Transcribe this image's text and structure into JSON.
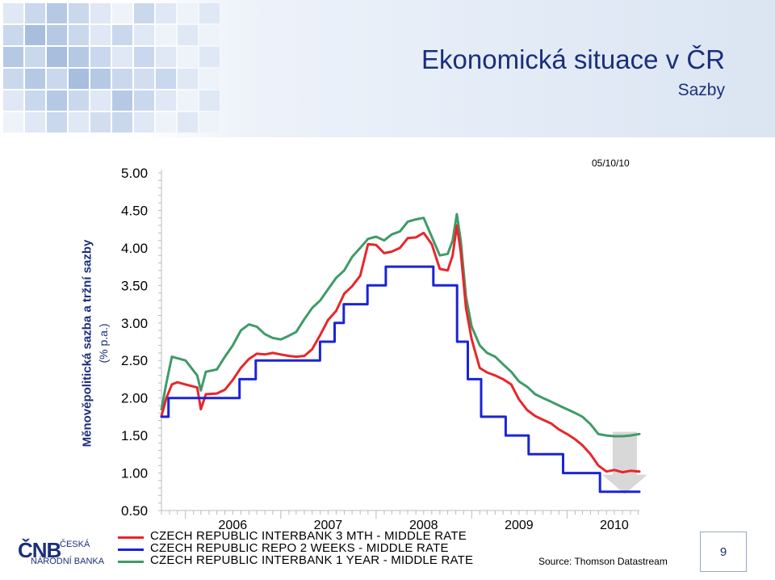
{
  "header": {
    "title": "Ekonomická situace v ČR",
    "subtitle": "Sazby"
  },
  "date_label": "05/10/10",
  "y_axis": {
    "title": "Měnověpolitická sazba a tržní sazby",
    "unit": "(% p.a.)"
  },
  "source": "Source: Thomson Datastream",
  "page_number": "9",
  "logo": {
    "mark": "ČNB",
    "line1": "ČESKÁ",
    "line2": "NÁRODNÍ BANKA"
  },
  "colors": {
    "interbank_3m": "#e8262b",
    "repo_2w": "#1a24d6",
    "interbank_1y": "#3f9b68",
    "title": "#1b2f7a",
    "arrow": "#d8d8d8"
  },
  "chart_data": {
    "type": "line",
    "ylim": [
      0.5,
      5.0
    ],
    "yticks": [
      "0.50",
      "1.00",
      "1.50",
      "2.00",
      "2.50",
      "3.00",
      "3.50",
      "4.00",
      "4.50",
      "5.00"
    ],
    "years": [
      "2006",
      "2007",
      "2008",
      "2009",
      "2010"
    ],
    "xlim": [
      "2005-10-01",
      "2010-10-05"
    ],
    "grid": false,
    "legend_position": "bottom",
    "series": [
      {
        "name": "CZECH REPUBLIC INTERBANK 3 MTH - MIDDLE RATE",
        "color_key": "interbank_3m",
        "points": [
          [
            "2005-10-01",
            1.76
          ],
          [
            "2005-10-20",
            2.0
          ],
          [
            "2005-11-10",
            2.18
          ],
          [
            "2005-12-01",
            2.21
          ],
          [
            "2006-01-01",
            2.18
          ],
          [
            "2006-02-15",
            2.14
          ],
          [
            "2006-03-01",
            1.85
          ],
          [
            "2006-03-20",
            2.05
          ],
          [
            "2006-05-01",
            2.06
          ],
          [
            "2006-06-01",
            2.11
          ],
          [
            "2006-07-01",
            2.24
          ],
          [
            "2006-08-01",
            2.4
          ],
          [
            "2006-09-01",
            2.52
          ],
          [
            "2006-10-01",
            2.59
          ],
          [
            "2006-11-01",
            2.58
          ],
          [
            "2006-12-01",
            2.6
          ],
          [
            "2007-01-01",
            2.58
          ],
          [
            "2007-02-01",
            2.56
          ],
          [
            "2007-03-01",
            2.55
          ],
          [
            "2007-04-01",
            2.56
          ],
          [
            "2007-05-01",
            2.65
          ],
          [
            "2007-06-01",
            2.84
          ],
          [
            "2007-07-01",
            3.04
          ],
          [
            "2007-08-01",
            3.16
          ],
          [
            "2007-09-01",
            3.39
          ],
          [
            "2007-10-01",
            3.49
          ],
          [
            "2007-11-01",
            3.63
          ],
          [
            "2007-12-01",
            4.05
          ],
          [
            "2008-01-01",
            4.04
          ],
          [
            "2008-02-01",
            3.93
          ],
          [
            "2008-03-01",
            3.95
          ],
          [
            "2008-04-01",
            4.0
          ],
          [
            "2008-05-01",
            4.13
          ],
          [
            "2008-06-01",
            4.14
          ],
          [
            "2008-07-01",
            4.2
          ],
          [
            "2008-08-01",
            4.05
          ],
          [
            "2008-09-01",
            3.72
          ],
          [
            "2008-10-01",
            3.7
          ],
          [
            "2008-10-20",
            3.9
          ],
          [
            "2008-11-05",
            4.3
          ],
          [
            "2008-11-20",
            3.95
          ],
          [
            "2008-12-10",
            3.2
          ],
          [
            "2009-01-01",
            2.78
          ],
          [
            "2009-02-01",
            2.4
          ],
          [
            "2009-03-01",
            2.34
          ],
          [
            "2009-04-01",
            2.3
          ],
          [
            "2009-05-01",
            2.25
          ],
          [
            "2009-06-01",
            2.18
          ],
          [
            "2009-07-01",
            1.98
          ],
          [
            "2009-08-01",
            1.84
          ],
          [
            "2009-09-01",
            1.76
          ],
          [
            "2009-10-01",
            1.71
          ],
          [
            "2009-11-01",
            1.66
          ],
          [
            "2009-12-01",
            1.58
          ],
          [
            "2010-01-01",
            1.52
          ],
          [
            "2010-02-01",
            1.45
          ],
          [
            "2010-03-01",
            1.37
          ],
          [
            "2010-04-01",
            1.25
          ],
          [
            "2010-05-01",
            1.1
          ],
          [
            "2010-06-01",
            1.02
          ],
          [
            "2010-07-01",
            1.04
          ],
          [
            "2010-08-01",
            1.01
          ],
          [
            "2010-09-01",
            1.03
          ],
          [
            "2010-10-05",
            1.02
          ]
        ]
      },
      {
        "name": "CZECH REPUBLIC REPO 2 WEEKS - MIDDLE RATE",
        "color_key": "repo_2w",
        "points": [
          [
            "2005-10-01",
            1.75
          ],
          [
            "2005-10-28",
            1.75
          ],
          [
            "2005-10-28",
            2.0
          ],
          [
            "2006-07-27",
            2.0
          ],
          [
            "2006-07-27",
            2.25
          ],
          [
            "2006-09-27",
            2.25
          ],
          [
            "2006-09-27",
            2.5
          ],
          [
            "2007-05-31",
            2.5
          ],
          [
            "2007-05-31",
            2.75
          ],
          [
            "2007-07-26",
            2.75
          ],
          [
            "2007-07-26",
            3.0
          ],
          [
            "2007-08-30",
            3.0
          ],
          [
            "2007-08-30",
            3.25
          ],
          [
            "2007-11-29",
            3.25
          ],
          [
            "2007-11-29",
            3.5
          ],
          [
            "2008-02-07",
            3.5
          ],
          [
            "2008-02-07",
            3.75
          ],
          [
            "2008-08-07",
            3.75
          ],
          [
            "2008-08-07",
            3.5
          ],
          [
            "2008-11-06",
            3.5
          ],
          [
            "2008-11-06",
            2.75
          ],
          [
            "2008-12-17",
            2.75
          ],
          [
            "2008-12-17",
            2.25
          ],
          [
            "2009-02-06",
            2.25
          ],
          [
            "2009-02-06",
            1.75
          ],
          [
            "2009-05-11",
            1.75
          ],
          [
            "2009-05-11",
            1.5
          ],
          [
            "2009-08-07",
            1.5
          ],
          [
            "2009-08-07",
            1.25
          ],
          [
            "2009-12-17",
            1.25
          ],
          [
            "2009-12-17",
            1.0
          ],
          [
            "2010-05-07",
            1.0
          ],
          [
            "2010-05-07",
            0.75
          ],
          [
            "2010-10-05",
            0.75
          ]
        ]
      },
      {
        "name": "CZECH REPUBLIC INTERBANK 1 YEAR - MIDDLE RATE",
        "color_key": "interbank_1y",
        "points": [
          [
            "2005-10-01",
            1.85
          ],
          [
            "2005-10-20",
            2.2
          ],
          [
            "2005-11-10",
            2.55
          ],
          [
            "2005-12-01",
            2.53
          ],
          [
            "2006-01-01",
            2.5
          ],
          [
            "2006-02-15",
            2.3
          ],
          [
            "2006-03-01",
            2.1
          ],
          [
            "2006-03-20",
            2.35
          ],
          [
            "2006-05-01",
            2.38
          ],
          [
            "2006-06-01",
            2.55
          ],
          [
            "2006-07-01",
            2.7
          ],
          [
            "2006-08-01",
            2.9
          ],
          [
            "2006-09-01",
            2.98
          ],
          [
            "2006-10-01",
            2.95
          ],
          [
            "2006-11-01",
            2.85
          ],
          [
            "2006-12-01",
            2.8
          ],
          [
            "2007-01-01",
            2.78
          ],
          [
            "2007-02-01",
            2.83
          ],
          [
            "2007-03-01",
            2.88
          ],
          [
            "2007-04-01",
            3.05
          ],
          [
            "2007-05-01",
            3.2
          ],
          [
            "2007-06-01",
            3.3
          ],
          [
            "2007-07-01",
            3.45
          ],
          [
            "2007-08-01",
            3.6
          ],
          [
            "2007-09-01",
            3.7
          ],
          [
            "2007-10-01",
            3.88
          ],
          [
            "2007-11-01",
            4.0
          ],
          [
            "2007-12-01",
            4.12
          ],
          [
            "2008-01-01",
            4.15
          ],
          [
            "2008-02-01",
            4.1
          ],
          [
            "2008-03-01",
            4.18
          ],
          [
            "2008-04-01",
            4.22
          ],
          [
            "2008-05-01",
            4.35
          ],
          [
            "2008-06-01",
            4.38
          ],
          [
            "2008-07-01",
            4.4
          ],
          [
            "2008-08-01",
            4.15
          ],
          [
            "2008-09-01",
            3.9
          ],
          [
            "2008-10-01",
            3.92
          ],
          [
            "2008-10-20",
            4.1
          ],
          [
            "2008-11-05",
            4.45
          ],
          [
            "2008-11-20",
            4.1
          ],
          [
            "2008-12-10",
            3.35
          ],
          [
            "2009-01-01",
            2.95
          ],
          [
            "2009-02-01",
            2.7
          ],
          [
            "2009-03-01",
            2.6
          ],
          [
            "2009-04-01",
            2.55
          ],
          [
            "2009-05-01",
            2.45
          ],
          [
            "2009-06-01",
            2.35
          ],
          [
            "2009-07-01",
            2.22
          ],
          [
            "2009-08-01",
            2.15
          ],
          [
            "2009-09-01",
            2.05
          ],
          [
            "2009-10-01",
            2.0
          ],
          [
            "2009-11-01",
            1.95
          ],
          [
            "2009-12-01",
            1.9
          ],
          [
            "2010-01-01",
            1.85
          ],
          [
            "2010-02-01",
            1.8
          ],
          [
            "2010-03-01",
            1.75
          ],
          [
            "2010-04-01",
            1.65
          ],
          [
            "2010-05-01",
            1.52
          ],
          [
            "2010-06-01",
            1.5
          ],
          [
            "2010-07-01",
            1.49
          ],
          [
            "2010-08-01",
            1.49
          ],
          [
            "2010-09-01",
            1.5
          ],
          [
            "2010-10-05",
            1.52
          ]
        ]
      }
    ]
  }
}
